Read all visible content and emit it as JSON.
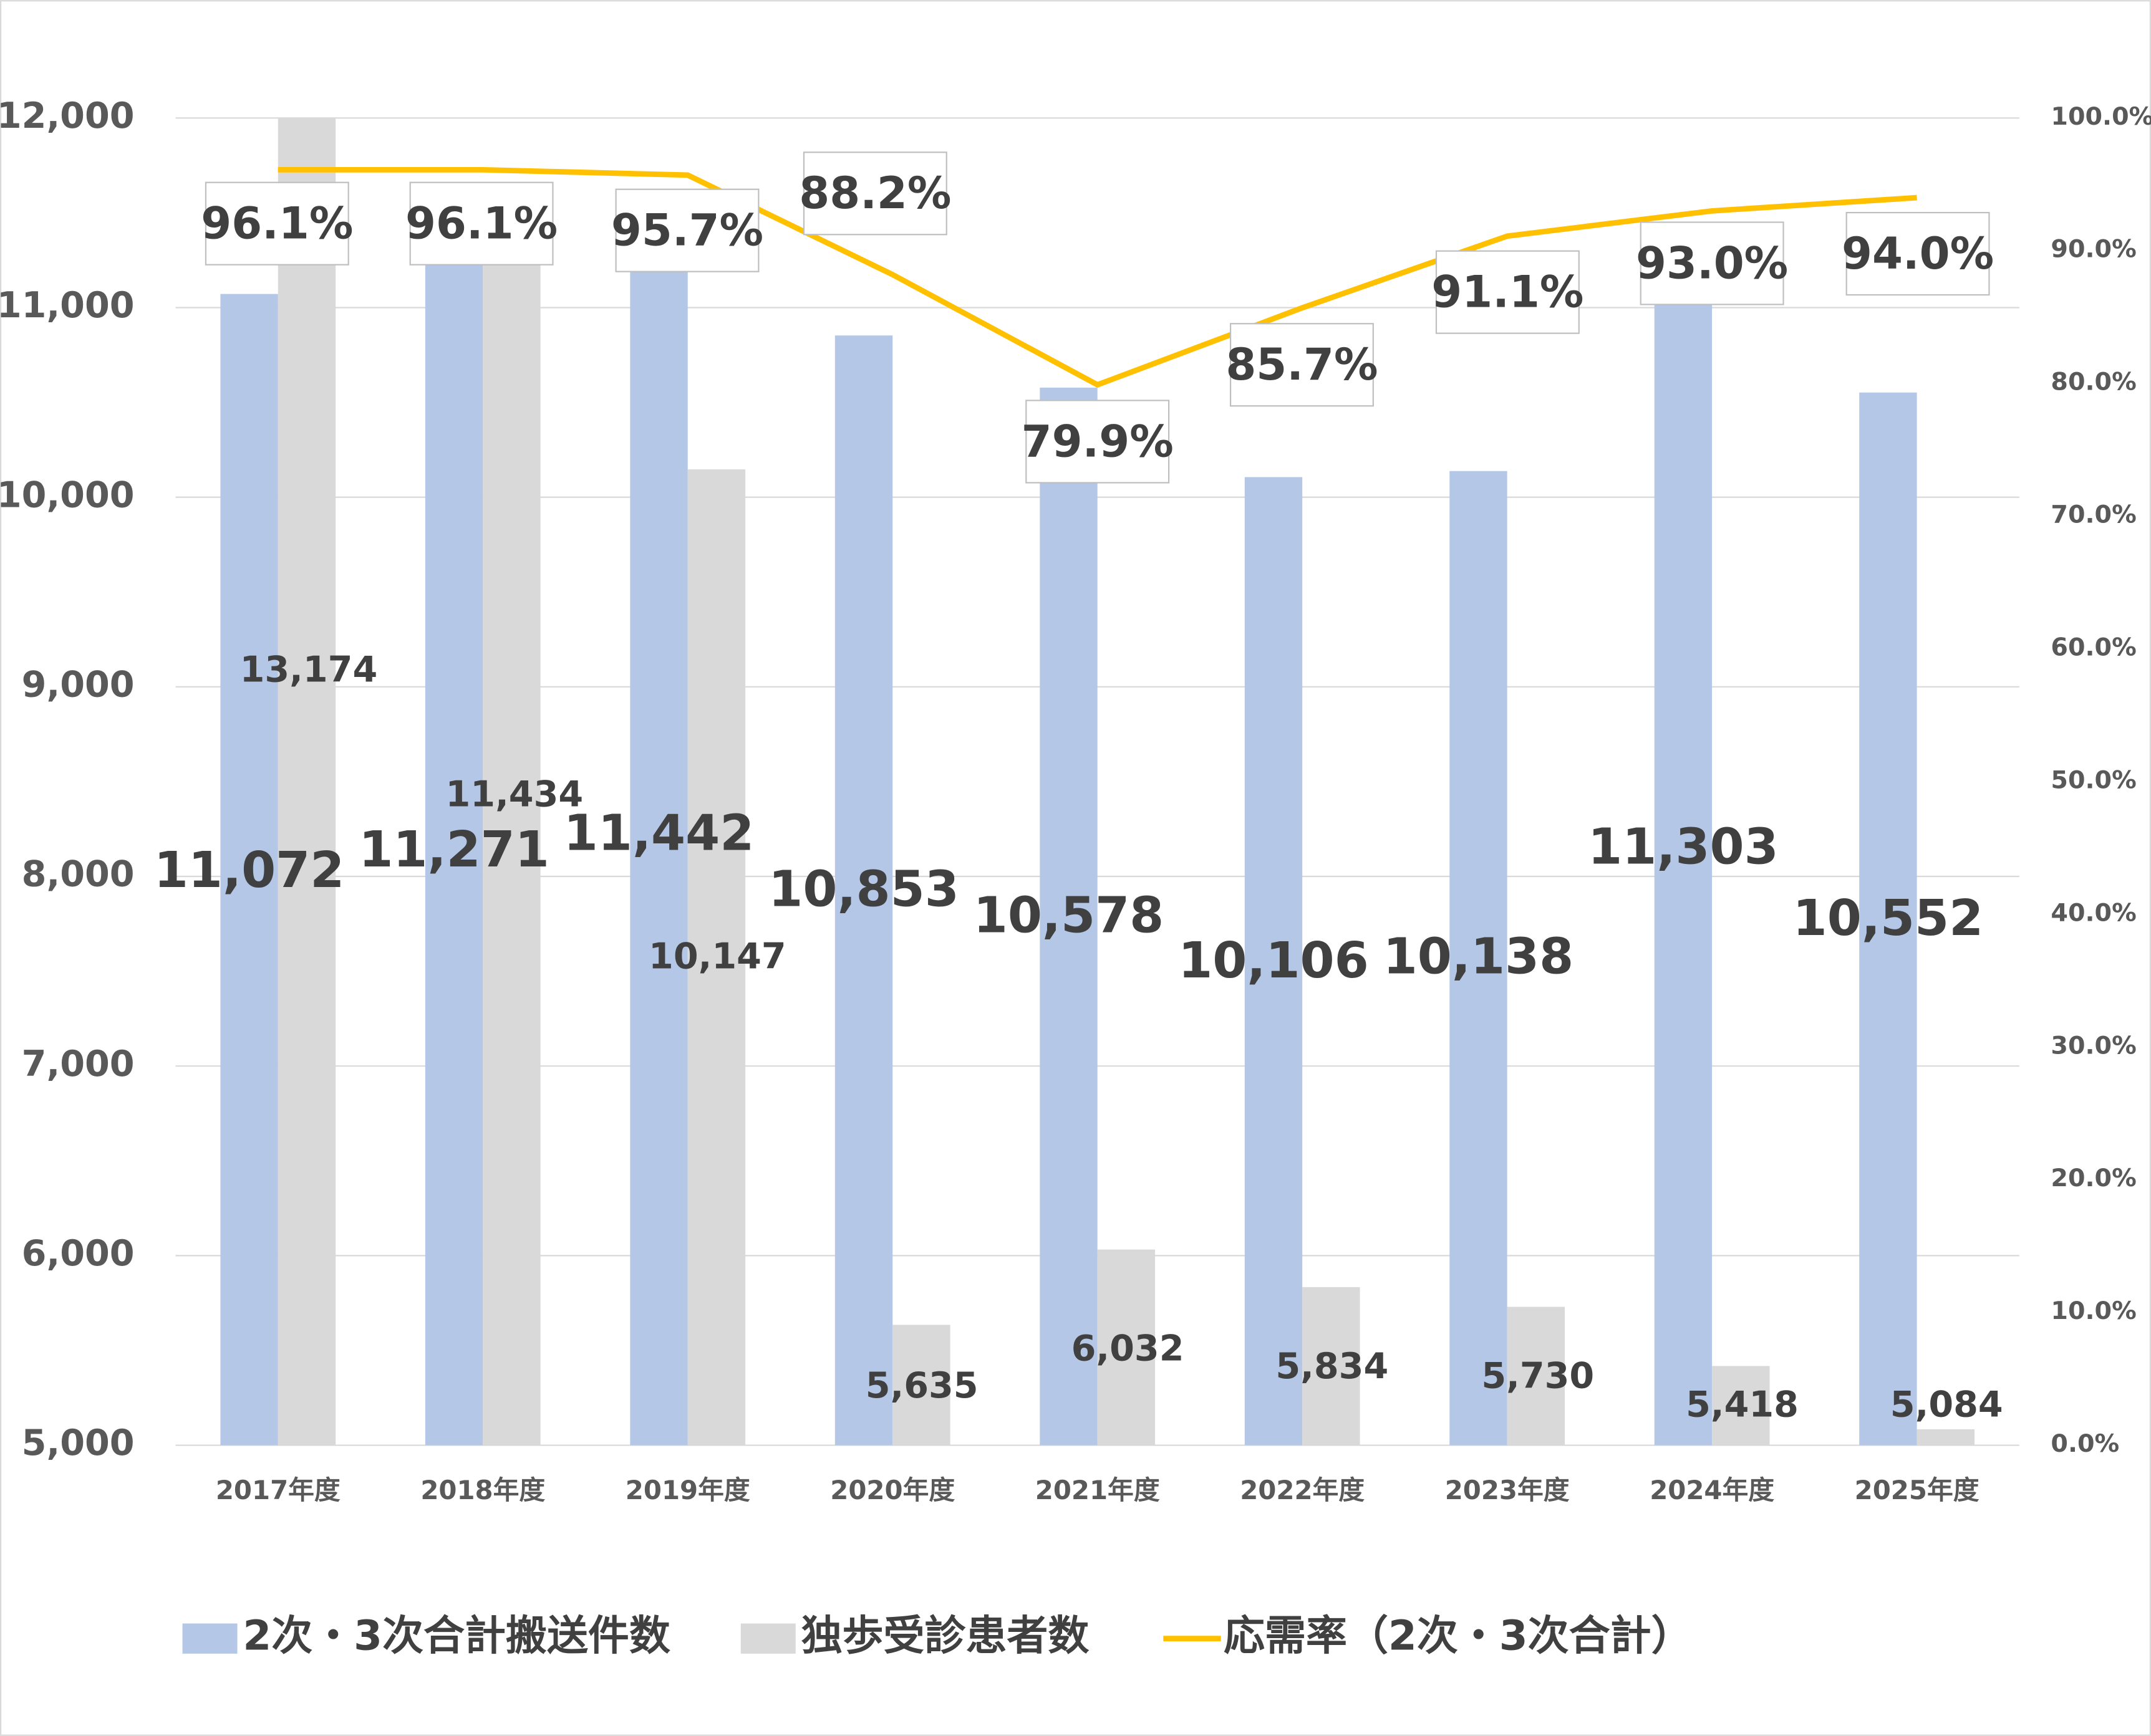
{
  "chart_data": {
    "type": "bar",
    "categories": [
      "2017年度",
      "2018年度",
      "2019年度",
      "2020年度",
      "2021年度",
      "2022年度",
      "2023年度",
      "2024年度",
      "2025年度"
    ],
    "series": [
      {
        "name": "2次・3次合計搬送件数",
        "type": "bar",
        "color": "#b4c7e7",
        "values": [
          11072,
          11271,
          11442,
          10853,
          10578,
          10106,
          10138,
          11303,
          10552
        ],
        "value_labels": [
          "11,072",
          "11,271",
          "11,442",
          "10,853",
          "10,578",
          "10,106",
          "10,138",
          "11,303",
          "10,552"
        ]
      },
      {
        "name": "独歩受診患者数",
        "type": "bar",
        "color": "#d9d9d9",
        "values": [
          13174,
          11434,
          10147,
          5635,
          6032,
          5834,
          5730,
          5418,
          5084
        ],
        "value_labels": [
          "13,174",
          "11,434",
          "10,147",
          "5,635",
          "6,032",
          "5,834",
          "5,730",
          "5,418",
          "5,084"
        ]
      },
      {
        "name": "応需率（2次・3次合計）",
        "type": "line",
        "axis": "y2",
        "color": "#ffc000",
        "values": [
          96.1,
          96.1,
          95.7,
          88.2,
          79.9,
          85.7,
          91.1,
          93.0,
          94.0
        ],
        "value_labels": [
          "96.1%",
          "96.1%",
          "95.7%",
          "88.2%",
          "79.9%",
          "85.7%",
          "91.1%",
          "93.0%",
          "94.0%"
        ]
      }
    ],
    "ylim": [
      5000,
      12000
    ],
    "yticks": [
      {
        "value": 5000,
        "label": "5,000"
      },
      {
        "value": 6000,
        "label": "6,000"
      },
      {
        "value": 7000,
        "label": "7,000"
      },
      {
        "value": 8000,
        "label": "8,000"
      },
      {
        "value": 9000,
        "label": "9,000"
      },
      {
        "value": 10000,
        "label": "10,000"
      },
      {
        "value": 11000,
        "label": "11,000"
      },
      {
        "value": 12000,
        "label": "12,000"
      }
    ],
    "y2lim": [
      0,
      100
    ],
    "y2ticks": [
      {
        "value": 0,
        "label": "0.0%"
      },
      {
        "value": 10,
        "label": "10.0%"
      },
      {
        "value": 20,
        "label": "20.0%"
      },
      {
        "value": 30,
        "label": "30.0%"
      },
      {
        "value": 40,
        "label": "40.0%"
      },
      {
        "value": 50,
        "label": "50.0%"
      },
      {
        "value": 60,
        "label": "60.0%"
      },
      {
        "value": 70,
        "label": "70.0%"
      },
      {
        "value": 80,
        "label": "80.0%"
      },
      {
        "value": 90,
        "label": "90.0%"
      },
      {
        "value": 100,
        "label": "100.0%"
      }
    ],
    "grid": true,
    "legend": "bottom"
  }
}
